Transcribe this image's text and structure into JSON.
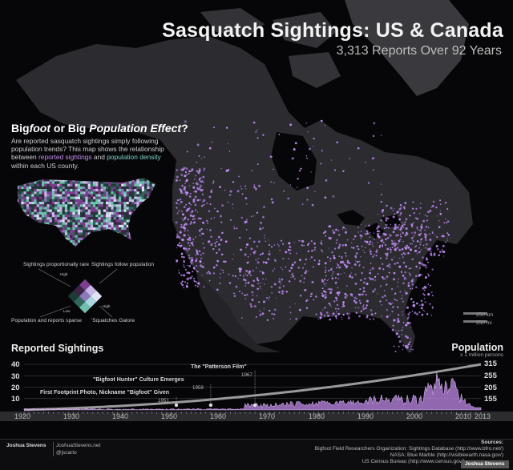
{
  "title": "Sasquatch Sightings: US & Canada",
  "subtitle": "3,313 Reports Over 92 Years",
  "inset": {
    "heading_a": "Big",
    "heading_b": "foot",
    "heading_c": " or Big ",
    "heading_d": "Population Effect",
    "heading_e": "?",
    "text_1": "Are reported sasquatch sightings simply following population trends? This map shows the relationship between ",
    "text_hl1": "reported sightings",
    "text_2": " and ",
    "text_hl2": "population density",
    "text_3": " within each US county.",
    "label_tl": "Sightings proportionally rare",
    "label_tr": "Sightings follow population",
    "label_bl": "Population and reports sparse",
    "label_br": "'Squatches Galore",
    "axis_high_1": "High",
    "axis_high_2": "High",
    "axis_low": "Low",
    "legend_colors": [
      "#7c3f8f",
      "#c8b6e6",
      "#dfe2f2",
      "#3c2446",
      "#8d79b8",
      "#a9d6e2",
      "#1f3b36",
      "#31665f",
      "#6ec2ad"
    ]
  },
  "scale": {
    "km": "250 km",
    "mi": "250 mi"
  },
  "timeline": {
    "sightings_title": "Reported Sightings",
    "population_title": "Population",
    "population_unit": "x 1 million persons",
    "y_left_ticks": [
      "40",
      "30",
      "20",
      "10"
    ],
    "y_right_ticks": [
      "315",
      "255",
      "205",
      "155"
    ],
    "x_ticks": [
      "1920",
      "1930",
      "1940",
      "1950",
      "1960",
      "1970",
      "1980",
      "1990",
      "2000",
      "2010",
      "2013"
    ],
    "annotations": [
      {
        "label": "The \"Patterson Film\"",
        "year": "1967"
      },
      {
        "label": "\"Bigfoot Hunter\" Culture Emerges",
        "year": "1958"
      },
      {
        "label": "First Footprint Photo, Nickname \"Bigfoot\" Given",
        "year": "1951"
      }
    ]
  },
  "chart_data": {
    "type": "area",
    "x_range": [
      1920,
      2013
    ],
    "sightings_ylim": [
      0,
      40
    ],
    "population_ylim": [
      105,
      315
    ],
    "sightings_peak_year": 2005,
    "sightings_peak_value": 38,
    "population_start": 106,
    "population_end": 315
  },
  "footer": {
    "author": "Joshua Stevens",
    "site": "JoshuaStevens.net",
    "handle": "@jscarto",
    "sources_heading": "Sources:",
    "source_1": "Bigfoot Field Researchers Organization: Sightings Database (http://www.bfro.net/)",
    "source_2": "NASA: Blue Marble (http://visibleearth.nasa.gov/)",
    "source_3": "US Census Bureau (http://www.census.gov/)",
    "signature": "Joshua Stevens"
  },
  "colors": {
    "sighting_dot": "#c890ff",
    "land": "#2a2a2e",
    "ocean": "#060608",
    "accent_green": "#7fd3c9",
    "accent_purple": "#c48ff0"
  }
}
